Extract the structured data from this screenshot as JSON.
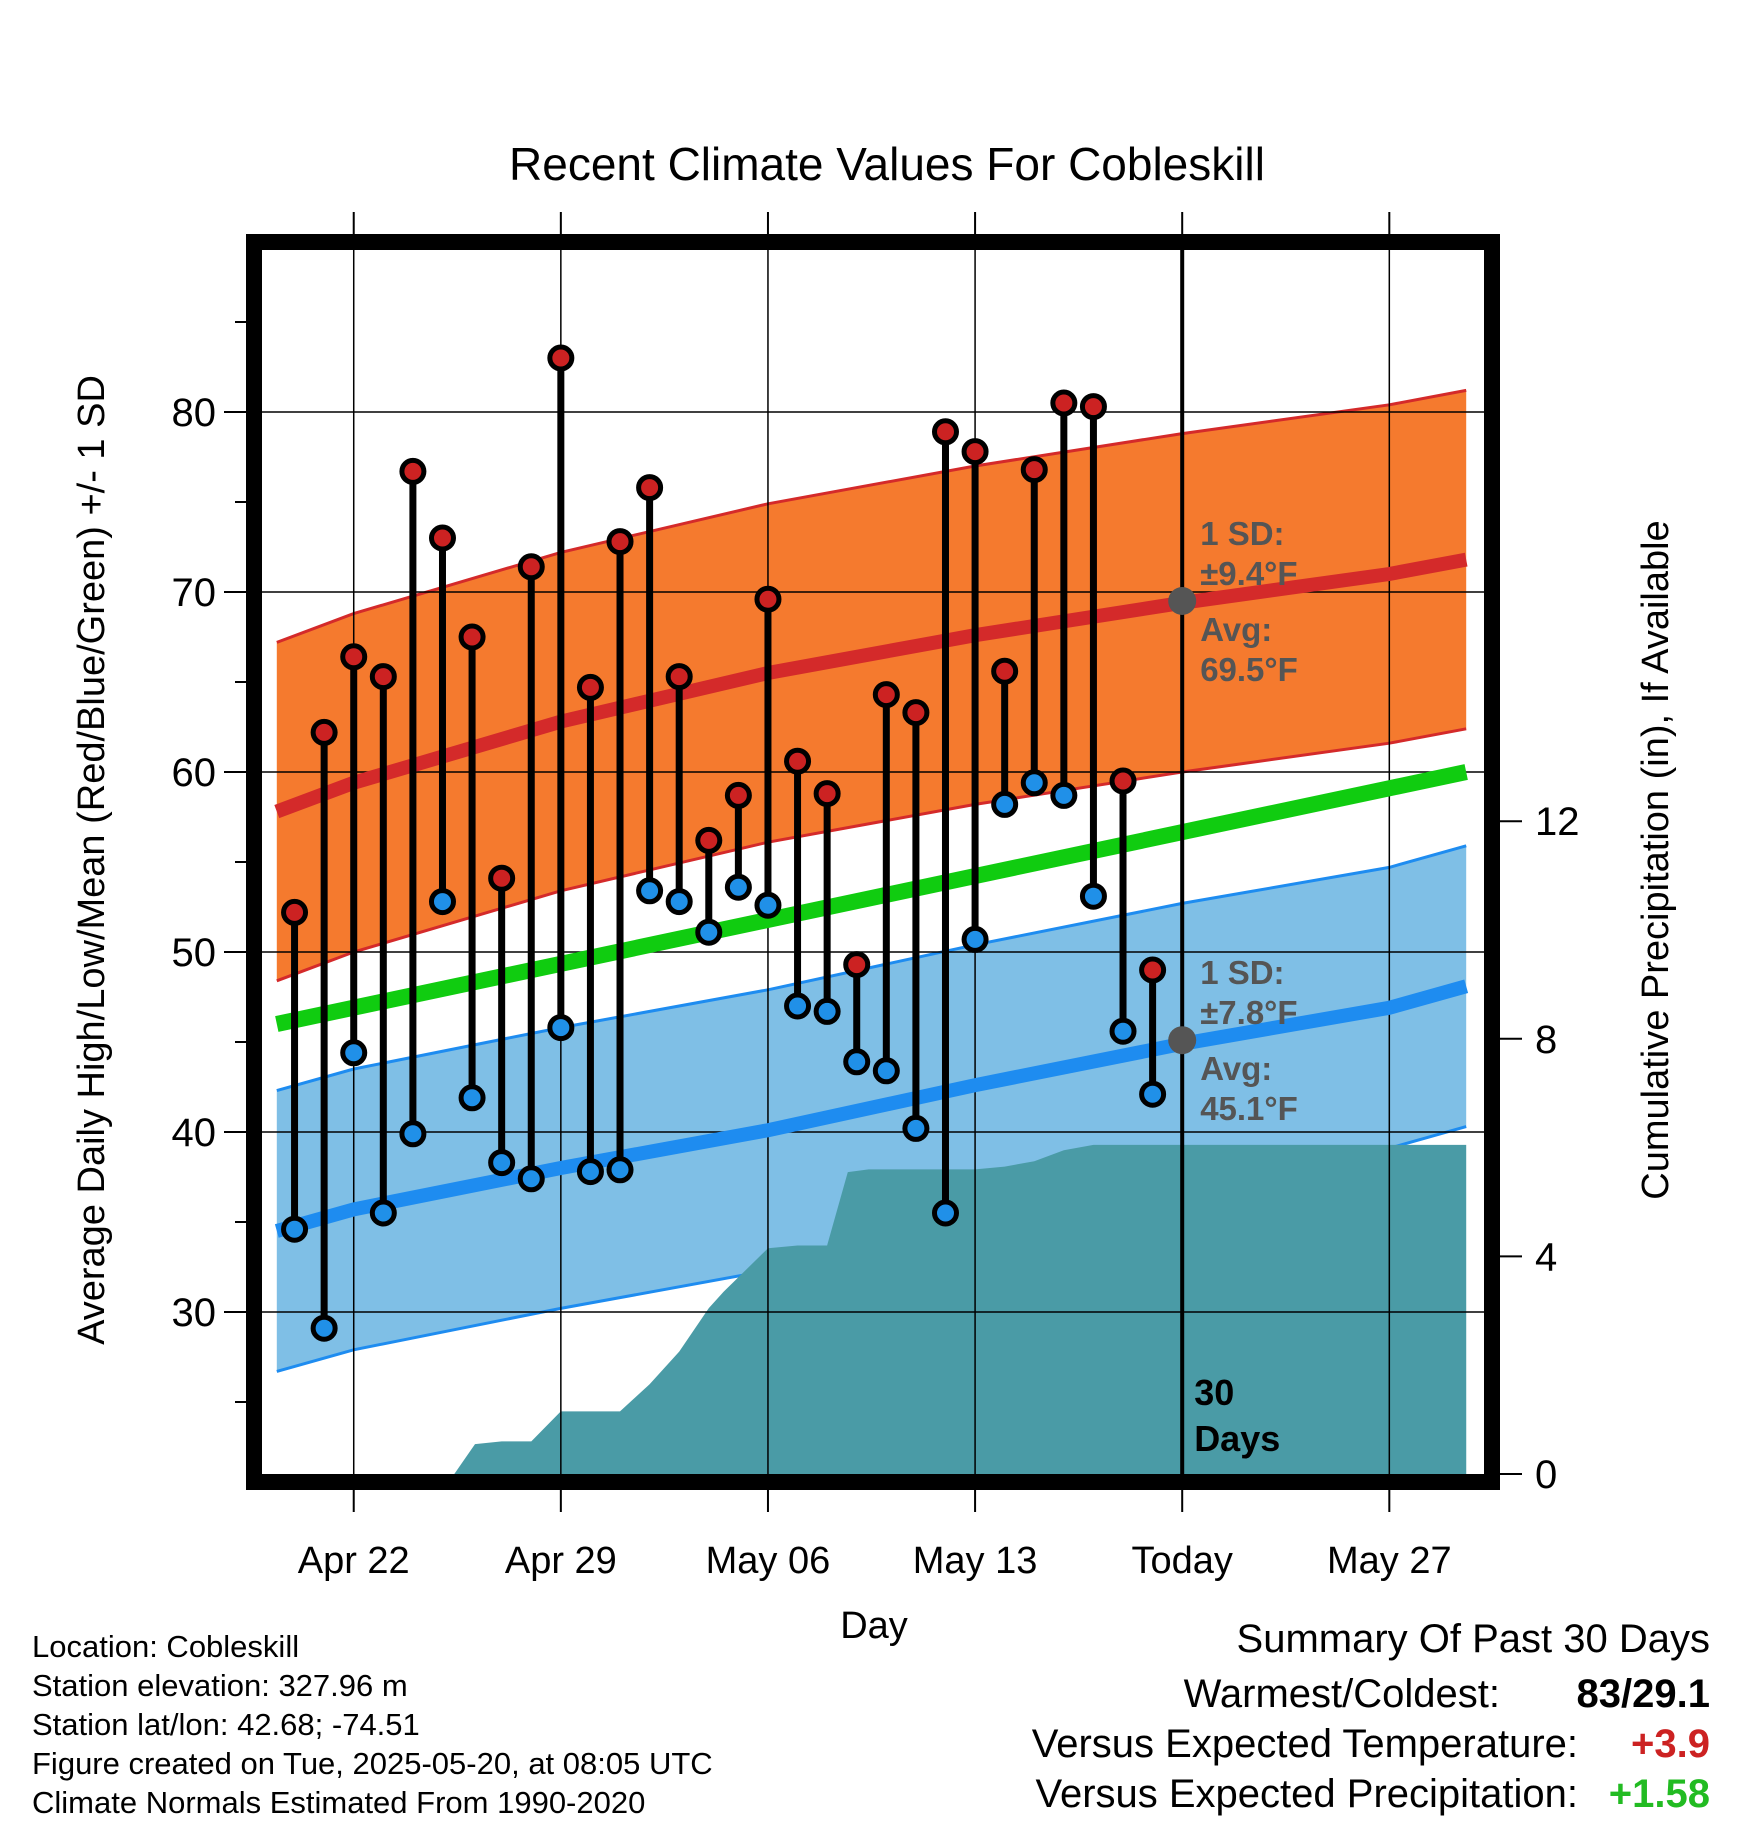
{
  "chart_data": {
    "type": "line",
    "title": "Recent Climate Values For Cobleskill",
    "xlabel": "Day",
    "ylabel": "Average Daily High/Low/Mean (Red/Blue/Green) +/- 1 SD",
    "y2label": "Cumulative Precipitation (in), If Available",
    "x_ticks": [
      "Apr 22",
      "Apr 29",
      "May 06",
      "May 13",
      "Today",
      "May 27"
    ],
    "x_range_days": [
      -31.1,
      10.2
    ],
    "x_tick_days": [
      -28,
      -21,
      -14,
      -7,
      0,
      7
    ],
    "ylim": [
      21,
      89
    ],
    "y_ticks": [
      30,
      40,
      50,
      60,
      70,
      80
    ],
    "y2lim": [
      0,
      22.5
    ],
    "y2_ticks": [
      0,
      4,
      8,
      12
    ],
    "today_label": "30\nDays",
    "grid": true,
    "high_normal": {
      "days": [
        -30.6,
        -28,
        -21,
        -14,
        -7,
        0,
        7,
        9.6
      ],
      "mean": [
        57.8,
        59.4,
        62.8,
        65.5,
        67.6,
        69.4,
        71.0,
        71.8
      ],
      "sd": 9.4
    },
    "low_normal": {
      "days": [
        -30.6,
        -28,
        -21,
        -14,
        -7,
        0,
        7,
        9.6
      ],
      "mean": [
        34.5,
        35.7,
        38.0,
        40.1,
        42.6,
        44.9,
        46.9,
        48.1
      ],
      "sd": 7.8
    },
    "mean_normal": {
      "days": [
        -30.6,
        9.6
      ],
      "values": [
        46.0,
        60.0
      ]
    },
    "annotations": {
      "high": {
        "sd_label": "1 SD:",
        "sd_value": "±9.4°F",
        "avg_label": "Avg:",
        "avg_value": "69.5°F",
        "today_value": 69.5
      },
      "low": {
        "sd_label": "1 SD:",
        "sd_value": "±7.8°F",
        "avg_label": "Avg:",
        "avg_value": "45.1°F",
        "today_value": 45.1
      }
    },
    "daily": {
      "days": [
        -30,
        -29,
        -28,
        -27,
        -26,
        -25,
        -24,
        -23,
        -22,
        -21,
        -20,
        -19,
        -18,
        -17,
        -16,
        -15,
        -14,
        -13,
        -12,
        -11,
        -10,
        -9,
        -8,
        -7,
        -6,
        -5,
        -4,
        -3,
        -2,
        -1
      ],
      "highs": [
        52.2,
        62.2,
        66.4,
        65.3,
        76.7,
        73.0,
        67.5,
        54.1,
        71.4,
        83.0,
        64.7,
        72.8,
        75.8,
        65.3,
        56.2,
        58.7,
        69.6,
        60.6,
        58.8,
        49.3,
        64.3,
        63.3,
        78.9,
        77.8,
        65.6,
        76.8,
        80.5,
        80.3,
        59.5,
        49.0
      ],
      "lows": [
        34.6,
        29.1,
        44.4,
        35.5,
        39.9,
        52.8,
        41.9,
        38.3,
        37.4,
        45.8,
        37.8,
        37.9,
        53.4,
        52.8,
        51.1,
        53.6,
        52.6,
        47.0,
        46.7,
        43.9,
        43.4,
        40.2,
        35.5,
        50.7,
        58.2,
        59.4,
        58.7,
        53.1,
        45.6,
        42.1
      ]
    },
    "precip": {
      "days": [
        -24.6,
        -23.9,
        -23,
        -22,
        -21,
        -20,
        -19,
        -18,
        -17,
        -16,
        -15.5,
        -14,
        -13,
        -12,
        -11.3,
        -10.6,
        -10,
        -9,
        -8,
        -7,
        -6,
        -5,
        -4,
        -3,
        -2,
        -1,
        0,
        9.6
      ],
      "cumulative": [
        0,
        0.55,
        0.6,
        0.6,
        1.15,
        1.15,
        1.15,
        1.65,
        2.25,
        3.05,
        3.35,
        4.15,
        4.2,
        4.2,
        5.55,
        5.6,
        5.6,
        5.6,
        5.6,
        5.6,
        5.65,
        5.75,
        5.95,
        6.05,
        6.05,
        6.05,
        6.05,
        6.05
      ]
    }
  },
  "info": [
    "Location: Cobleskill",
    "Station elevation: 327.96 m",
    "Station lat/lon: 42.68; -74.51",
    "Figure created on Tue, 2025-05-20, at 08:05 UTC",
    "Climate Normals Estimated From 1990-2020"
  ],
  "summary": {
    "title": "Summary Of Past 30 Days",
    "warm_cold_label": "Warmest/Coldest:",
    "warm_cold_value": "83/29.1",
    "temp_label": "Versus Expected Temperature:",
    "temp_value": "+3.9",
    "temp_color": "#cc2222",
    "precip_label": "Versus Expected Precipitation:",
    "precip_value": "+1.58",
    "precip_color": "#22bb22"
  },
  "colors": {
    "high_band": "#f57a2e",
    "high_line": "#d42a2a",
    "low_band": "#7fbfe6",
    "low_line": "#1e8cf0",
    "mean_line": "#10cc10",
    "precip": "#4a9ba6",
    "high_dot": "#cc2222",
    "low_dot": "#2090e8",
    "annotation": "#555555"
  }
}
